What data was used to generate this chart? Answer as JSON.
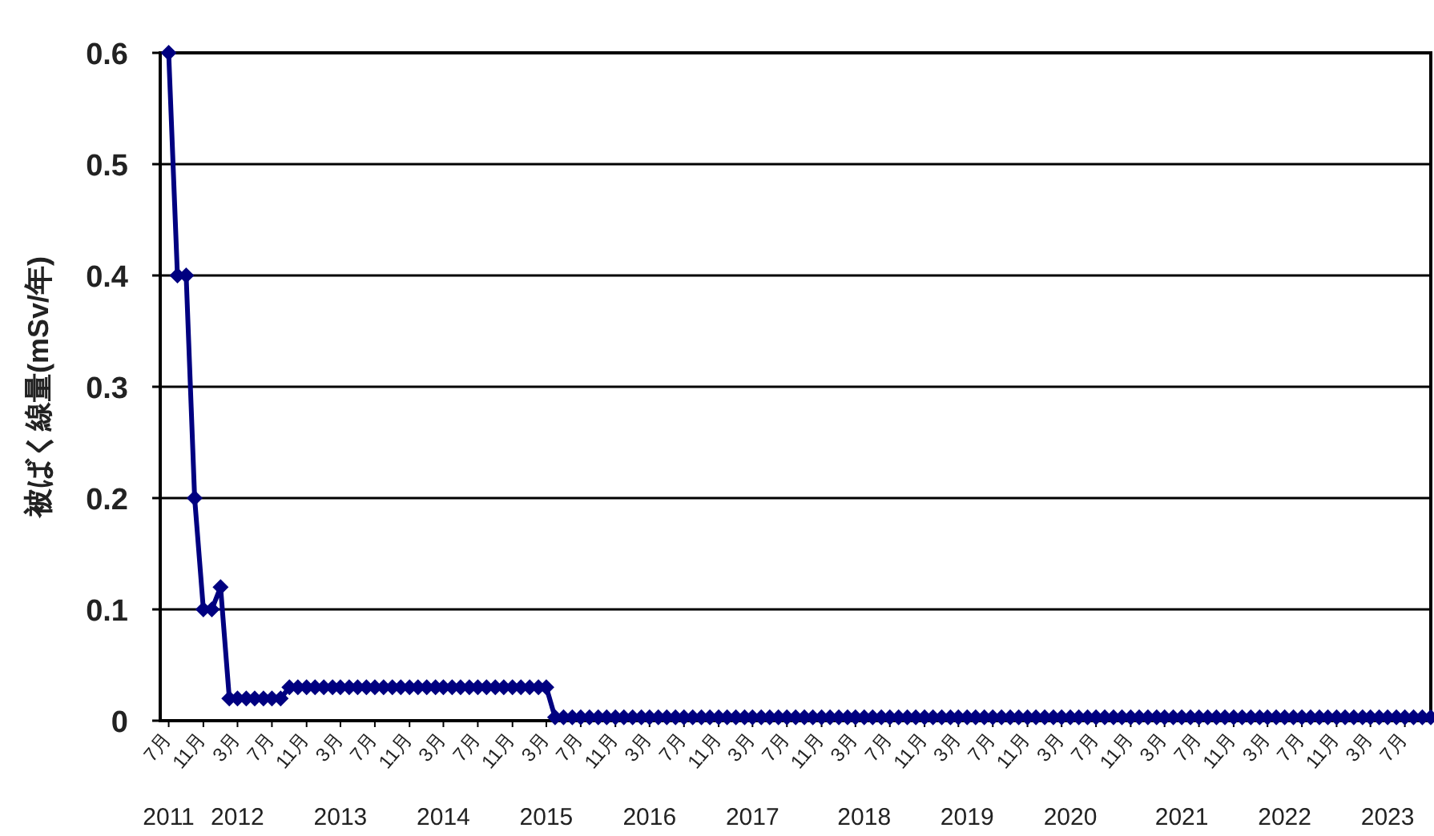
{
  "chart_data": {
    "type": "line",
    "ylabel": "被ばく線量(mSv/年)",
    "x": [
      "2011-07",
      "2011-08",
      "2011-09",
      "2011-10",
      "2011-11",
      "2011-12",
      "2012-01",
      "2012-02",
      "2012-03",
      "2012-04",
      "2012-05",
      "2012-06",
      "2012-07",
      "2012-08",
      "2012-09",
      "2012-10",
      "2012-11",
      "2012-12",
      "2013-01",
      "2013-02",
      "2013-03",
      "2013-04",
      "2013-05",
      "2013-06",
      "2013-07",
      "2013-08",
      "2013-09",
      "2013-10",
      "2013-11",
      "2013-12",
      "2014-01",
      "2014-02",
      "2014-03",
      "2014-04",
      "2014-05",
      "2014-06",
      "2014-07",
      "2014-08",
      "2014-09",
      "2014-10",
      "2014-11",
      "2014-12",
      "2015-01",
      "2015-02",
      "2015-03",
      "2015-04",
      "2015-05",
      "2015-06",
      "2015-07",
      "2015-08",
      "2015-09",
      "2015-10",
      "2015-11",
      "2015-12",
      "2016-01",
      "2016-02",
      "2016-03",
      "2016-04",
      "2016-05",
      "2016-06",
      "2016-07",
      "2016-08",
      "2016-09",
      "2016-10",
      "2016-11",
      "2016-12",
      "2017-01",
      "2017-02",
      "2017-03",
      "2017-04",
      "2017-05",
      "2017-06",
      "2017-07",
      "2017-08",
      "2017-09",
      "2017-10",
      "2017-11",
      "2017-12",
      "2018-01",
      "2018-02",
      "2018-03",
      "2018-04",
      "2018-05",
      "2018-06",
      "2018-07",
      "2018-08",
      "2018-09",
      "2018-10",
      "2018-11",
      "2018-12",
      "2019-01",
      "2019-02",
      "2019-03",
      "2019-04",
      "2019-05",
      "2019-06",
      "2019-07",
      "2019-08",
      "2019-09",
      "2019-10",
      "2019-11",
      "2019-12",
      "2020-01",
      "2020-02",
      "2020-03",
      "2020-04",
      "2020-05",
      "2020-06",
      "2020-07",
      "2020-08",
      "2020-09",
      "2020-10",
      "2020-11",
      "2020-12",
      "2021-01",
      "2021-02",
      "2021-03",
      "2021-04",
      "2021-05",
      "2021-06",
      "2021-07",
      "2021-08",
      "2021-09",
      "2021-10",
      "2021-11",
      "2021-12",
      "2022-01",
      "2022-02",
      "2022-03",
      "2022-04",
      "2022-05",
      "2022-06",
      "2022-07",
      "2022-08",
      "2022-09",
      "2022-10",
      "2022-11",
      "2022-12",
      "2023-01",
      "2023-02",
      "2023-03",
      "2023-04",
      "2023-05",
      "2023-06",
      "2023-07",
      "2023-08",
      "2023-09",
      "2023-10"
    ],
    "series": [
      {
        "color": "#000080",
        "values": [
          0.6,
          0.4,
          0.4,
          0.2,
          0.1,
          0.1,
          0.12,
          0.02,
          0.02,
          0.02,
          0.02,
          0.02,
          0.02,
          0.02,
          0.03,
          0.03,
          0.03,
          0.03,
          0.03,
          0.03,
          0.03,
          0.03,
          0.03,
          0.03,
          0.03,
          0.03,
          0.03,
          0.03,
          0.03,
          0.03,
          0.03,
          0.03,
          0.03,
          0.03,
          0.03,
          0.03,
          0.03,
          0.03,
          0.03,
          0.03,
          0.03,
          0.03,
          0.03,
          0.03,
          0.03,
          0.003,
          0.003,
          0.003,
          0.003,
          0.003,
          0.003,
          0.003,
          0.003,
          0.003,
          0.003,
          0.003,
          0.003,
          0.003,
          0.003,
          0.003,
          0.003,
          0.003,
          0.003,
          0.003,
          0.003,
          0.003,
          0.003,
          0.003,
          0.003,
          0.003,
          0.003,
          0.003,
          0.003,
          0.003,
          0.003,
          0.003,
          0.003,
          0.003,
          0.003,
          0.003,
          0.003,
          0.003,
          0.003,
          0.003,
          0.003,
          0.003,
          0.003,
          0.003,
          0.003,
          0.003,
          0.003,
          0.003,
          0.003,
          0.003,
          0.003,
          0.003,
          0.003,
          0.003,
          0.003,
          0.003,
          0.003,
          0.003,
          0.003,
          0.003,
          0.003,
          0.003,
          0.003,
          0.003,
          0.003,
          0.003,
          0.003,
          0.003,
          0.003,
          0.003,
          0.003,
          0.003,
          0.003,
          0.003,
          0.003,
          0.003,
          0.003,
          0.003,
          0.003,
          0.003,
          0.003,
          0.003,
          0.003,
          0.003,
          0.003,
          0.003,
          0.003,
          0.003,
          0.003,
          0.003,
          0.003,
          0.003,
          0.003,
          0.003,
          0.003,
          0.003,
          0.003,
          0.003,
          0.003,
          0.003,
          0.003,
          0.003,
          0.003,
          0.003
        ]
      }
    ],
    "xlim": [
      "2011-06",
      "2023-10"
    ],
    "xticks": [
      {
        "value": "2011-07",
        "label": "7月"
      },
      {
        "value": "2011-11",
        "label": "11月"
      },
      {
        "value": "2012-03",
        "label": "3月"
      },
      {
        "value": "2012-07",
        "label": "7月"
      },
      {
        "value": "2012-11",
        "label": "11月"
      },
      {
        "value": "2013-03",
        "label": "3月"
      },
      {
        "value": "2013-07",
        "label": "7月"
      },
      {
        "value": "2013-11",
        "label": "11月"
      },
      {
        "value": "2014-03",
        "label": "3月"
      },
      {
        "value": "2014-07",
        "label": "7月"
      },
      {
        "value": "2014-11",
        "label": "11月"
      },
      {
        "value": "2015-03",
        "label": "3月"
      },
      {
        "value": "2015-07",
        "label": "7月"
      },
      {
        "value": "2015-11",
        "label": "11月"
      },
      {
        "value": "2016-03",
        "label": "3月"
      },
      {
        "value": "2016-07",
        "label": "7月"
      },
      {
        "value": "2016-11",
        "label": "11月"
      },
      {
        "value": "2017-03",
        "label": "3月"
      },
      {
        "value": "2017-07",
        "label": "7月"
      },
      {
        "value": "2017-11",
        "label": "11月"
      },
      {
        "value": "2018-03",
        "label": "3月"
      },
      {
        "value": "2018-07",
        "label": "7月"
      },
      {
        "value": "2018-11",
        "label": "11月"
      },
      {
        "value": "2019-03",
        "label": "3月"
      },
      {
        "value": "2019-07",
        "label": "7月"
      },
      {
        "value": "2019-11",
        "label": "11月"
      },
      {
        "value": "2020-03",
        "label": "3月"
      },
      {
        "value": "2020-07",
        "label": "7月"
      },
      {
        "value": "2020-11",
        "label": "11月"
      },
      {
        "value": "2021-03",
        "label": "3月"
      },
      {
        "value": "2021-07",
        "label": "7月"
      },
      {
        "value": "2021-11",
        "label": "11月"
      },
      {
        "value": "2022-03",
        "label": "3月"
      },
      {
        "value": "2022-07",
        "label": "7月"
      },
      {
        "value": "2022-11",
        "label": "11月"
      },
      {
        "value": "2023-03",
        "label": "3月"
      },
      {
        "value": "2023-07",
        "label": "7月"
      }
    ],
    "x2lim": [
      "2011-06",
      "2023-10"
    ],
    "x2ticks": [
      {
        "value": "2011-07",
        "label": "2011"
      },
      {
        "value": "2012-03",
        "label": "2012"
      },
      {
        "value": "2013-03",
        "label": "2013"
      },
      {
        "value": "2014-03",
        "label": "2014"
      },
      {
        "value": "2015-03",
        "label": "2015"
      },
      {
        "value": "2016-03",
        "label": "2016"
      },
      {
        "value": "2017-03",
        "label": "2017"
      },
      {
        "value": "2018-04",
        "label": "2018"
      },
      {
        "value": "2019-04",
        "label": "2019"
      },
      {
        "value": "2020-04",
        "label": "2020"
      },
      {
        "value": "2021-05",
        "label": "2021"
      },
      {
        "value": "2022-05",
        "label": "2022"
      },
      {
        "value": "2023-05",
        "label": "2023"
      }
    ],
    "ylim": [
      0,
      0.6
    ],
    "yticks": [
      0,
      0.1,
      0.2,
      0.3,
      0.4,
      0.5,
      0.6
    ],
    "grid": "y",
    "marker": "diamond",
    "line_style": "solid"
  }
}
